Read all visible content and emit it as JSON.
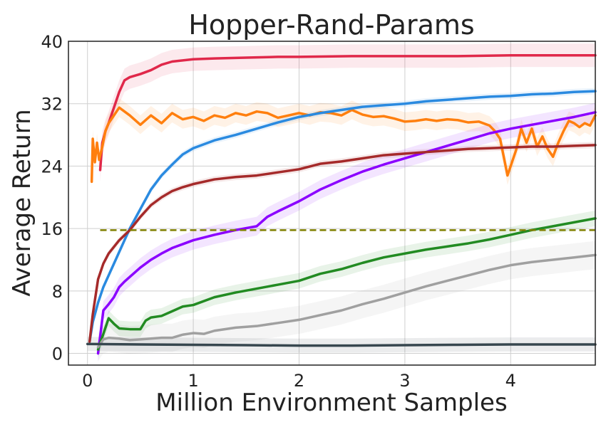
{
  "chart_data": {
    "type": "line",
    "title": "Hopper-Rand-Params",
    "xlabel": "Million Environment Samples",
    "ylabel": "Average Return",
    "xlim": [
      -0.18,
      4.8
    ],
    "ylim": [
      -1.5,
      40
    ],
    "xticks": [
      0,
      1,
      2,
      3,
      4
    ],
    "xtick_labels": [
      "0",
      "1",
      "2",
      "3",
      "4"
    ],
    "yticks": [
      0,
      8,
      16,
      24,
      32,
      40
    ],
    "ytick_labels": [
      "0",
      "8",
      "16",
      "24",
      "32",
      "40"
    ],
    "grid": true,
    "legend": "none",
    "reference_lines": [
      {
        "y": 15.8,
        "x_range": [
          0.12,
          4.8
        ],
        "color": "#808000",
        "style": "dashed"
      }
    ],
    "series": [
      {
        "color": "#e0284a",
        "band": 1.5,
        "x": [
          0.12,
          0.14,
          0.17,
          0.2,
          0.25,
          0.3,
          0.35,
          0.4,
          0.5,
          0.6,
          0.7,
          0.8,
          1.0,
          1.2,
          1.5,
          1.8,
          2.0,
          2.5,
          3.0,
          3.5,
          4.0,
          4.5,
          4.8
        ],
        "y": [
          23.5,
          27.0,
          28.5,
          29.5,
          31.5,
          33.5,
          35.0,
          35.4,
          35.8,
          36.3,
          37.0,
          37.4,
          37.7,
          37.8,
          37.9,
          38.0,
          38.0,
          38.1,
          38.1,
          38.1,
          38.2,
          38.2,
          38.2
        ]
      },
      {
        "color": "#ff7f0e",
        "band": 1.2,
        "x": [
          0.04,
          0.05,
          0.07,
          0.09,
          0.11,
          0.14,
          0.17,
          0.2,
          0.25,
          0.3,
          0.35,
          0.4,
          0.5,
          0.6,
          0.7,
          0.8,
          0.9,
          1.0,
          1.1,
          1.2,
          1.3,
          1.4,
          1.5,
          1.6,
          1.7,
          1.8,
          1.9,
          2.0,
          2.1,
          2.2,
          2.3,
          2.4,
          2.5,
          2.6,
          2.7,
          2.8,
          2.9,
          3.0,
          3.1,
          3.2,
          3.3,
          3.4,
          3.5,
          3.6,
          3.7,
          3.8,
          3.85,
          3.9,
          3.93,
          3.97,
          4.0,
          4.05,
          4.1,
          4.15,
          4.2,
          4.25,
          4.3,
          4.35,
          4.4,
          4.45,
          4.5,
          4.55,
          4.6,
          4.65,
          4.7,
          4.75,
          4.8
        ],
        "y": [
          22.0,
          27.5,
          24.5,
          27.0,
          24.8,
          26.5,
          28.5,
          29.5,
          30.5,
          31.5,
          31.0,
          30.5,
          29.3,
          30.5,
          29.5,
          30.8,
          30.0,
          30.3,
          29.8,
          30.5,
          30.2,
          30.8,
          30.5,
          31.0,
          30.8,
          30.2,
          30.5,
          30.8,
          30.5,
          30.9,
          30.8,
          30.5,
          31.2,
          30.6,
          30.3,
          30.4,
          30.1,
          29.7,
          29.8,
          30.0,
          29.8,
          30.0,
          29.9,
          29.6,
          29.7,
          29.2,
          28.5,
          27.5,
          25.5,
          22.8,
          24.0,
          26.0,
          28.8,
          27.0,
          28.8,
          26.5,
          27.8,
          26.2,
          25.2,
          27.0,
          28.5,
          29.8,
          29.5,
          29.0,
          29.5,
          29.2,
          30.5
        ]
      },
      {
        "color": "#2a8ae0",
        "band": 0.4,
        "x": [
          0.02,
          0.05,
          0.1,
          0.15,
          0.2,
          0.25,
          0.3,
          0.35,
          0.4,
          0.5,
          0.6,
          0.7,
          0.8,
          0.9,
          1.0,
          1.2,
          1.4,
          1.6,
          1.8,
          2.0,
          2.2,
          2.4,
          2.6,
          2.8,
          3.0,
          3.2,
          3.4,
          3.6,
          3.8,
          4.0,
          4.2,
          4.4,
          4.6,
          4.8
        ],
        "y": [
          1.5,
          4.0,
          6.5,
          8.5,
          10.0,
          11.5,
          13.0,
          14.5,
          16.0,
          18.5,
          21.0,
          22.8,
          24.2,
          25.5,
          26.3,
          27.3,
          28.0,
          28.8,
          29.6,
          30.3,
          30.8,
          31.2,
          31.6,
          31.8,
          32.0,
          32.3,
          32.5,
          32.7,
          32.9,
          33.0,
          33.2,
          33.3,
          33.5,
          33.6
        ]
      },
      {
        "color": "#8b00ff",
        "band": 1.2,
        "x": [
          0.1,
          0.15,
          0.2,
          0.25,
          0.3,
          0.35,
          0.4,
          0.5,
          0.6,
          0.7,
          0.8,
          0.9,
          1.0,
          1.2,
          1.4,
          1.6,
          1.7,
          1.8,
          2.0,
          2.2,
          2.4,
          2.6,
          2.8,
          3.0,
          3.2,
          3.4,
          3.6,
          3.8,
          4.0,
          4.2,
          4.4,
          4.6,
          4.8
        ],
        "y": [
          0.0,
          5.5,
          6.3,
          7.2,
          8.5,
          9.2,
          9.8,
          11.0,
          12.0,
          12.8,
          13.5,
          14.0,
          14.5,
          15.2,
          15.8,
          16.3,
          17.5,
          18.2,
          19.5,
          21.0,
          22.2,
          23.3,
          24.2,
          25.0,
          25.8,
          26.6,
          27.4,
          28.2,
          28.8,
          29.3,
          29.8,
          30.3,
          30.9
        ]
      },
      {
        "color": "#a52a2a",
        "band": 0.4,
        "x": [
          0.02,
          0.05,
          0.1,
          0.15,
          0.2,
          0.3,
          0.4,
          0.5,
          0.6,
          0.7,
          0.8,
          0.9,
          1.0,
          1.2,
          1.4,
          1.6,
          1.8,
          2.0,
          2.2,
          2.4,
          2.6,
          2.8,
          3.0,
          3.2,
          3.4,
          3.6,
          3.8,
          4.0,
          4.2,
          4.4,
          4.6,
          4.8
        ],
        "y": [
          1.5,
          5.0,
          9.5,
          11.5,
          12.8,
          14.5,
          15.8,
          17.5,
          19.0,
          20.0,
          20.8,
          21.3,
          21.7,
          22.3,
          22.6,
          22.8,
          23.2,
          23.6,
          24.3,
          24.6,
          25.0,
          25.4,
          25.6,
          25.8,
          26.0,
          26.2,
          26.3,
          26.4,
          26.5,
          26.5,
          26.6,
          26.7
        ]
      },
      {
        "color": "#228b22",
        "band": 1.0,
        "x": [
          0.1,
          0.15,
          0.2,
          0.25,
          0.3,
          0.4,
          0.5,
          0.55,
          0.6,
          0.7,
          0.8,
          0.9,
          1.0,
          1.2,
          1.4,
          1.6,
          1.8,
          2.0,
          2.2,
          2.4,
          2.6,
          2.8,
          3.0,
          3.2,
          3.4,
          3.6,
          3.8,
          4.0,
          4.2,
          4.4,
          4.6,
          4.8
        ],
        "y": [
          0.5,
          2.5,
          4.5,
          3.8,
          3.2,
          3.1,
          3.1,
          4.2,
          4.6,
          4.8,
          5.4,
          6.0,
          6.2,
          7.2,
          7.8,
          8.3,
          8.8,
          9.3,
          10.2,
          10.8,
          11.6,
          12.3,
          12.8,
          13.3,
          13.7,
          14.1,
          14.6,
          15.2,
          15.8,
          16.3,
          16.8,
          17.3
        ]
      },
      {
        "color": "#a0a0a0",
        "band": 1.8,
        "x": [
          0.1,
          0.15,
          0.2,
          0.3,
          0.4,
          0.5,
          0.6,
          0.7,
          0.8,
          0.9,
          1.0,
          1.1,
          1.2,
          1.4,
          1.6,
          1.8,
          2.0,
          2.2,
          2.4,
          2.6,
          2.8,
          3.0,
          3.2,
          3.4,
          3.6,
          3.8,
          4.0,
          4.2,
          4.4,
          4.6,
          4.8
        ],
        "y": [
          0.8,
          1.8,
          2.0,
          1.9,
          1.7,
          1.8,
          1.9,
          2.0,
          2.0,
          2.4,
          2.6,
          2.5,
          2.9,
          3.3,
          3.5,
          3.9,
          4.3,
          4.9,
          5.5,
          6.3,
          7.0,
          7.8,
          8.6,
          9.3,
          10.0,
          10.7,
          11.3,
          11.7,
          12.0,
          12.3,
          12.6
        ]
      },
      {
        "color": "#37474f",
        "band": 0.9,
        "x": [
          0.0,
          0.5,
          1.0,
          1.5,
          2.0,
          2.5,
          3.0,
          3.5,
          4.0,
          4.5,
          4.8
        ],
        "y": [
          1.2,
          1.15,
          1.1,
          1.05,
          1.0,
          1.0,
          1.05,
          1.1,
          1.15,
          1.15,
          1.15
        ]
      }
    ]
  }
}
